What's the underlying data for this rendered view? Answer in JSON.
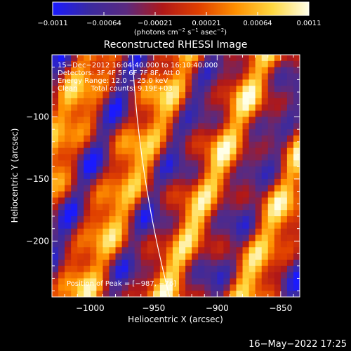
{
  "chart_data": {
    "type": "heatmap",
    "title": "Reconstructed RHESSI Image",
    "xlabel": "Heliocentric X (arcsec)",
    "ylabel": "Heliocentric Y (arcsec)",
    "xlim": [
      -1030,
      -835
    ],
    "ylim": [
      -245,
      -50
    ],
    "x_ticks": [
      -1000,
      -950,
      -900,
      -850
    ],
    "x_tick_labels": [
      "−1000",
      "−950",
      "−900",
      "−850"
    ],
    "y_ticks": [
      -100,
      -150,
      -200
    ],
    "y_tick_labels": [
      "−100",
      "−150",
      "−200"
    ],
    "colorbar": {
      "range": [
        -0.0011,
        0.0011
      ],
      "tick_labels": [
        "−0.0011",
        "−0.00064",
        "−0.00021",
        "0.00021",
        "0.00064",
        "0.0011"
      ],
      "units_prefix": "(photons cm",
      "units_sup1": "−2",
      "units_mid1": " s",
      "units_sup2": "−1",
      "units_mid2": " asec",
      "units_sup3": "−2",
      "units_suffix": ")",
      "stops": [
        "#1a1aff",
        "#3a2aa0",
        "#5a2a80",
        "#b01818",
        "#e04000",
        "#ff9000",
        "#ffd840",
        "#ffffe8"
      ]
    },
    "annotations": [
      "15−Dec−2012 16:04:40.000 to 16:10:40.000",
      "Detectors: 3F 4F 5F 6F 7F 8F, Att 0",
      "Energy Range: 12.0 − 25.0 keV",
      "Clean      Total counts: 9.19E+03"
    ],
    "peak_label": "Position of Peak = [−987, −76]",
    "limb_curve_color": "#ffffff"
  },
  "footer": {
    "timestamp": "16−May−2022 17:25"
  }
}
